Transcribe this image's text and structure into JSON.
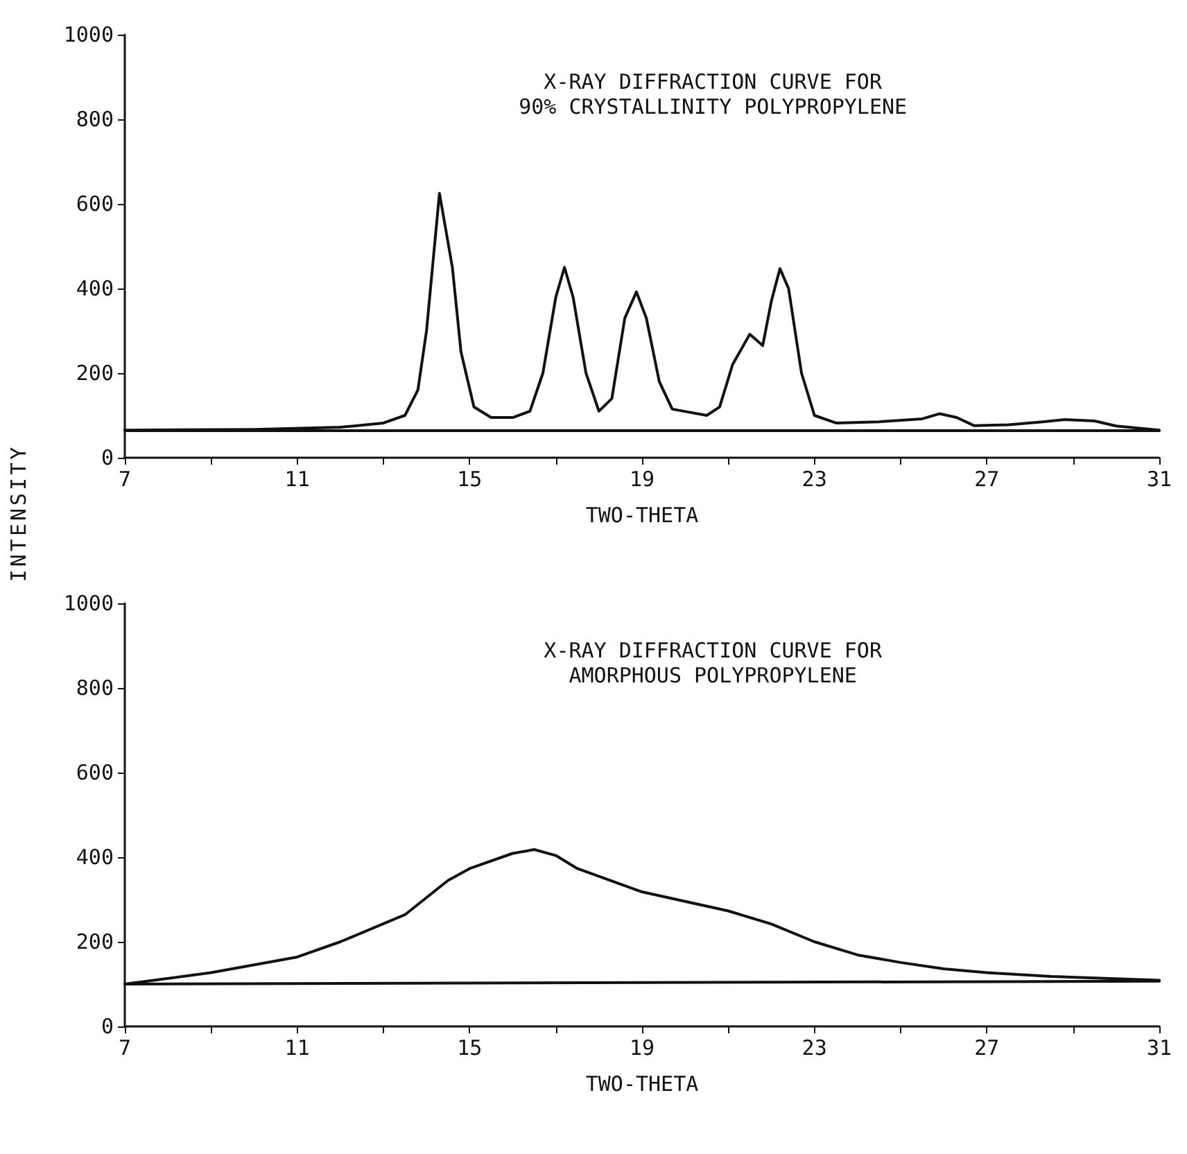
{
  "chart_data": [
    {
      "type": "line",
      "title": "X-RAY DIFFRACTION CURVE FOR\n90% CRYSTALLINITY POLYPROPYLENE",
      "xlabel": "TWO-THETA",
      "ylabel": "INTENSITY",
      "series": [
        {
          "color": "#111111",
          "x": [
            7,
            10,
            12,
            13,
            13.5,
            13.8,
            14.0,
            14.3,
            14.6,
            14.8,
            15.1,
            15.5,
            16,
            16.4,
            16.7,
            17.0,
            17.2,
            17.4,
            17.7,
            18.0,
            18.3,
            18.6,
            18.87,
            19.1,
            19.4,
            19.7,
            20.5,
            20.8,
            21.1,
            21.5,
            21.8,
            22.0,
            22.2,
            22.4,
            22.7,
            23.0,
            23.5,
            24.5,
            25.5,
            25.9,
            26.3,
            26.7,
            27.5,
            28.3,
            28.8,
            29.5,
            30,
            31
          ],
          "values": [
            65,
            67,
            72,
            82,
            100,
            160,
            300,
            625,
            450,
            250,
            120,
            95,
            95,
            110,
            200,
            380,
            450,
            380,
            200,
            110,
            140,
            330,
            392,
            330,
            180,
            115,
            100,
            120,
            220,
            292,
            265,
            370,
            447,
            400,
            200,
            100,
            82,
            85,
            92,
            104,
            95,
            76,
            78,
            85,
            90,
            87,
            75,
            65
          ]
        },
        {
          "color": "#111111",
          "x": [
            7,
            31
          ],
          "values": [
            64,
            64
          ]
        }
      ],
      "xlim": [
        7,
        31
      ],
      "xticks": [
        7,
        {
          "value": 9,
          "label": null
        },
        11,
        {
          "value": 13,
          "label": null
        },
        15,
        {
          "value": 17,
          "label": null
        },
        19,
        {
          "value": 21,
          "label": null
        },
        23,
        {
          "value": 25,
          "label": null
        },
        27,
        {
          "value": 29,
          "label": null
        },
        31
      ],
      "ylim": [
        0,
        1000
      ],
      "yticks": [
        0,
        200,
        400,
        600,
        800,
        1000
      ],
      "grid": false,
      "marker": "none",
      "line_style": "solid"
    },
    {
      "type": "line",
      "title": "X-RAY DIFFRACTION CURVE FOR\nAMORPHOUS POLYPROPYLENE",
      "xlabel": "TWO-THETA",
      "series": [
        {
          "color": "#111111",
          "x": [
            7,
            9,
            11,
            12,
            13.5,
            14.5,
            15,
            16,
            16.5,
            17,
            17.5,
            19,
            21,
            22,
            23,
            24,
            25,
            26,
            27,
            28.5,
            31
          ],
          "values": [
            100,
            127,
            164,
            200,
            264,
            345,
            373,
            409,
            418,
            404,
            373,
            318,
            273,
            242,
            200,
            169,
            151,
            136,
            127,
            118,
            109
          ]
        },
        {
          "color": "#111111",
          "x": [
            7,
            31
          ],
          "values": [
            100,
            107
          ]
        }
      ],
      "xlim": [
        7,
        31
      ],
      "xticks": [
        7,
        {
          "value": 9,
          "label": null
        },
        11,
        {
          "value": 13,
          "label": null
        },
        15,
        {
          "value": 17,
          "label": null
        },
        19,
        {
          "value": 21,
          "label": null
        },
        23,
        {
          "value": 25,
          "label": null
        },
        27,
        {
          "value": 29,
          "label": null
        },
        31
      ],
      "ylim": [
        0,
        1000
      ],
      "yticks": [
        0,
        200,
        400,
        600,
        800,
        1000
      ],
      "grid": false,
      "marker": "none",
      "line_style": "solid"
    }
  ]
}
